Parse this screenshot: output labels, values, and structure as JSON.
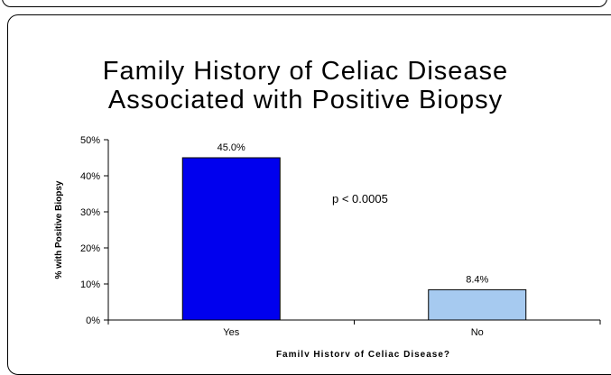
{
  "chart_data": {
    "type": "bar",
    "title_lines": [
      "Family History of Celiac Disease",
      "Associated with Positive Biopsy"
    ],
    "categories": [
      "Yes",
      "No"
    ],
    "values": [
      45.0,
      8.4
    ],
    "data_labels": [
      "45.0%",
      "8.4%"
    ],
    "bar_colors": [
      "#0000ee",
      "#a6caf0"
    ],
    "bar_border": "#000000",
    "ylabel": "% with Positive Biopsy",
    "xlabel": "Family History of Celiac Disease?",
    "ylim": [
      0,
      50
    ],
    "yticks": [
      0,
      10,
      20,
      30,
      40,
      50
    ],
    "ytick_labels": [
      "0%",
      "10%",
      "20%",
      "30%",
      "40%",
      "50%"
    ],
    "annotation": "p < 0.0005",
    "grid": false,
    "legend": "none"
  }
}
